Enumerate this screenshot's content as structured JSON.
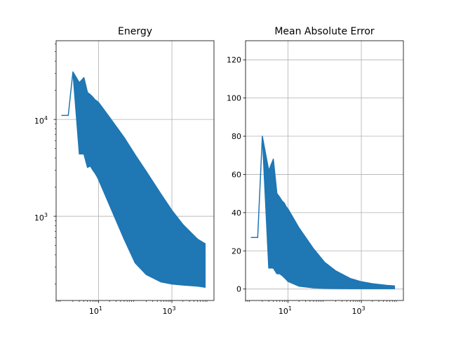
{
  "chart_data": [
    {
      "type": "line",
      "title": "Energy",
      "xlabel": "",
      "ylabel": "",
      "xscale": "log",
      "yscale": "log",
      "xlim": [
        0.7,
        14000
      ],
      "ylim": [
        135,
        65000
      ],
      "grid": true,
      "x_ticks": [
        {
          "value": 10,
          "base": "10",
          "exp": "1"
        },
        {
          "value": 1000,
          "base": "10",
          "exp": "3"
        }
      ],
      "y_ticks": [
        {
          "value": 1000,
          "base": "10",
          "exp": "3"
        },
        {
          "value": 10000,
          "base": "10",
          "exp": "4"
        }
      ],
      "series": [
        {
          "color": "#1f77b4",
          "x": [
            1,
            1.5,
            2,
            3,
            4,
            5,
            6,
            7,
            8,
            9,
            10,
            20,
            50,
            100,
            200,
            500,
            1000,
            2000,
            5000,
            8000
          ],
          "upper": [
            11000,
            11000,
            31000,
            24000,
            27000,
            19000,
            18000,
            17000,
            16000,
            15500,
            15000,
            10500,
            6500,
            4300,
            2900,
            1700,
            1150,
            820,
            580,
            520
          ],
          "lower": [
            11000,
            11000,
            31000,
            4400,
            4400,
            3200,
            3300,
            3000,
            2800,
            2600,
            2400,
            1300,
            580,
            330,
            250,
            210,
            200,
            195,
            190,
            185
          ]
        }
      ]
    },
    {
      "type": "line",
      "title": "Mean Absolute Error",
      "xlabel": "",
      "ylabel": "",
      "xscale": "log",
      "yscale": "linear",
      "xlim": [
        0.7,
        14000
      ],
      "ylim": [
        -6,
        130
      ],
      "grid": true,
      "x_ticks": [
        {
          "value": 10,
          "base": "10",
          "exp": "1"
        },
        {
          "value": 1000,
          "base": "10",
          "exp": "3"
        }
      ],
      "y_ticks": [
        {
          "value": 0,
          "label": "0"
        },
        {
          "value": 20,
          "label": "20"
        },
        {
          "value": 40,
          "label": "40"
        },
        {
          "value": 60,
          "label": "60"
        },
        {
          "value": 80,
          "label": "80"
        },
        {
          "value": 100,
          "label": "100"
        },
        {
          "value": 120,
          "label": "120"
        }
      ],
      "series": [
        {
          "color": "#1f77b4",
          "x": [
            1,
            1.5,
            2,
            3,
            4,
            5,
            6,
            7,
            8,
            9,
            10,
            20,
            50,
            100,
            200,
            500,
            1000,
            2000,
            5000,
            8000
          ],
          "upper": [
            27,
            27,
            80,
            62,
            68,
            50,
            48,
            46,
            45,
            43,
            42,
            32,
            21,
            14,
            9.5,
            5.5,
            3.8,
            2.8,
            1.9,
            1.6
          ],
          "lower": [
            27,
            27,
            80,
            11,
            11,
            8,
            8,
            7,
            6,
            5,
            4,
            1.5,
            0.6,
            0.4,
            0.3,
            0.2,
            0.2,
            0.2,
            0.2,
            0.2
          ]
        }
      ]
    }
  ]
}
